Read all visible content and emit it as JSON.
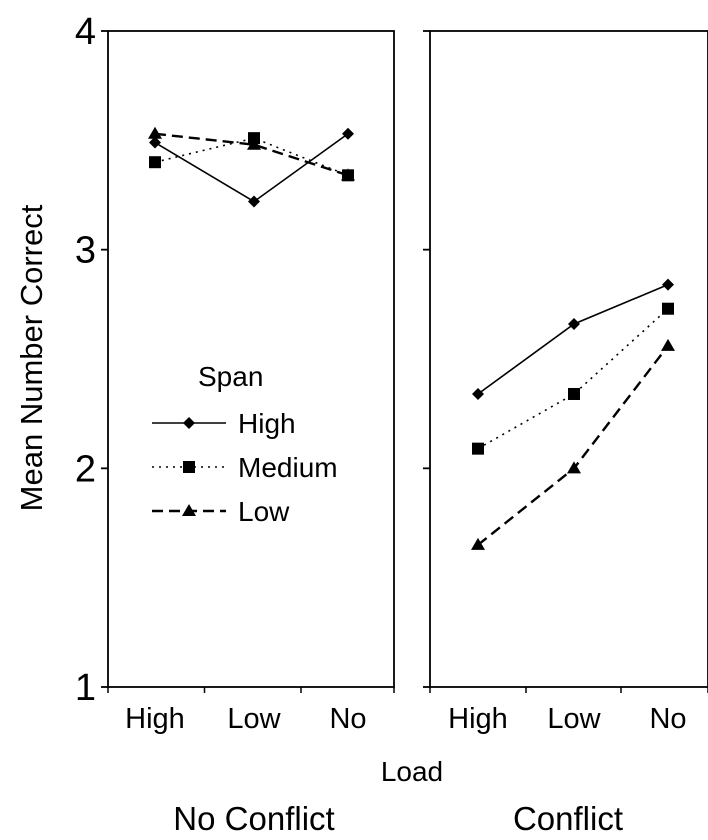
{
  "chart_data": {
    "type": "line",
    "ylabel": "Mean Number Correct",
    "xlabel": "Load",
    "ylim": [
      1,
      4
    ],
    "y_ticks": [
      1,
      2,
      3,
      4
    ],
    "y_tick_labels": [
      "1",
      "2",
      "3",
      "4"
    ],
    "categories": [
      "High",
      "Low",
      "No"
    ],
    "grid": false,
    "legend": {
      "title": "Span",
      "placement": "inside left panel, middle-left",
      "entries": [
        "High",
        "Medium",
        "Low"
      ]
    },
    "panels": [
      {
        "title": "No Conflict",
        "series": [
          {
            "name": "High",
            "marker": "diamond",
            "line": "solid",
            "values": [
              3.49,
              3.22,
              3.53
            ]
          },
          {
            "name": "Medium",
            "marker": "square",
            "line": "dotted",
            "values": [
              3.4,
              3.51,
              3.34
            ]
          },
          {
            "name": "Low",
            "marker": "triangle",
            "line": "dashed",
            "values": [
              3.53,
              3.48,
              3.34
            ]
          }
        ]
      },
      {
        "title": "Conflict",
        "series": [
          {
            "name": "High",
            "marker": "diamond",
            "line": "solid",
            "values": [
              2.34,
              2.66,
              2.84
            ]
          },
          {
            "name": "Medium",
            "marker": "square",
            "line": "dotted",
            "values": [
              2.09,
              2.34,
              2.73
            ]
          },
          {
            "name": "Low",
            "marker": "triangle",
            "line": "dashed",
            "values": [
              1.65,
              2.0,
              2.56
            ]
          }
        ]
      }
    ]
  }
}
